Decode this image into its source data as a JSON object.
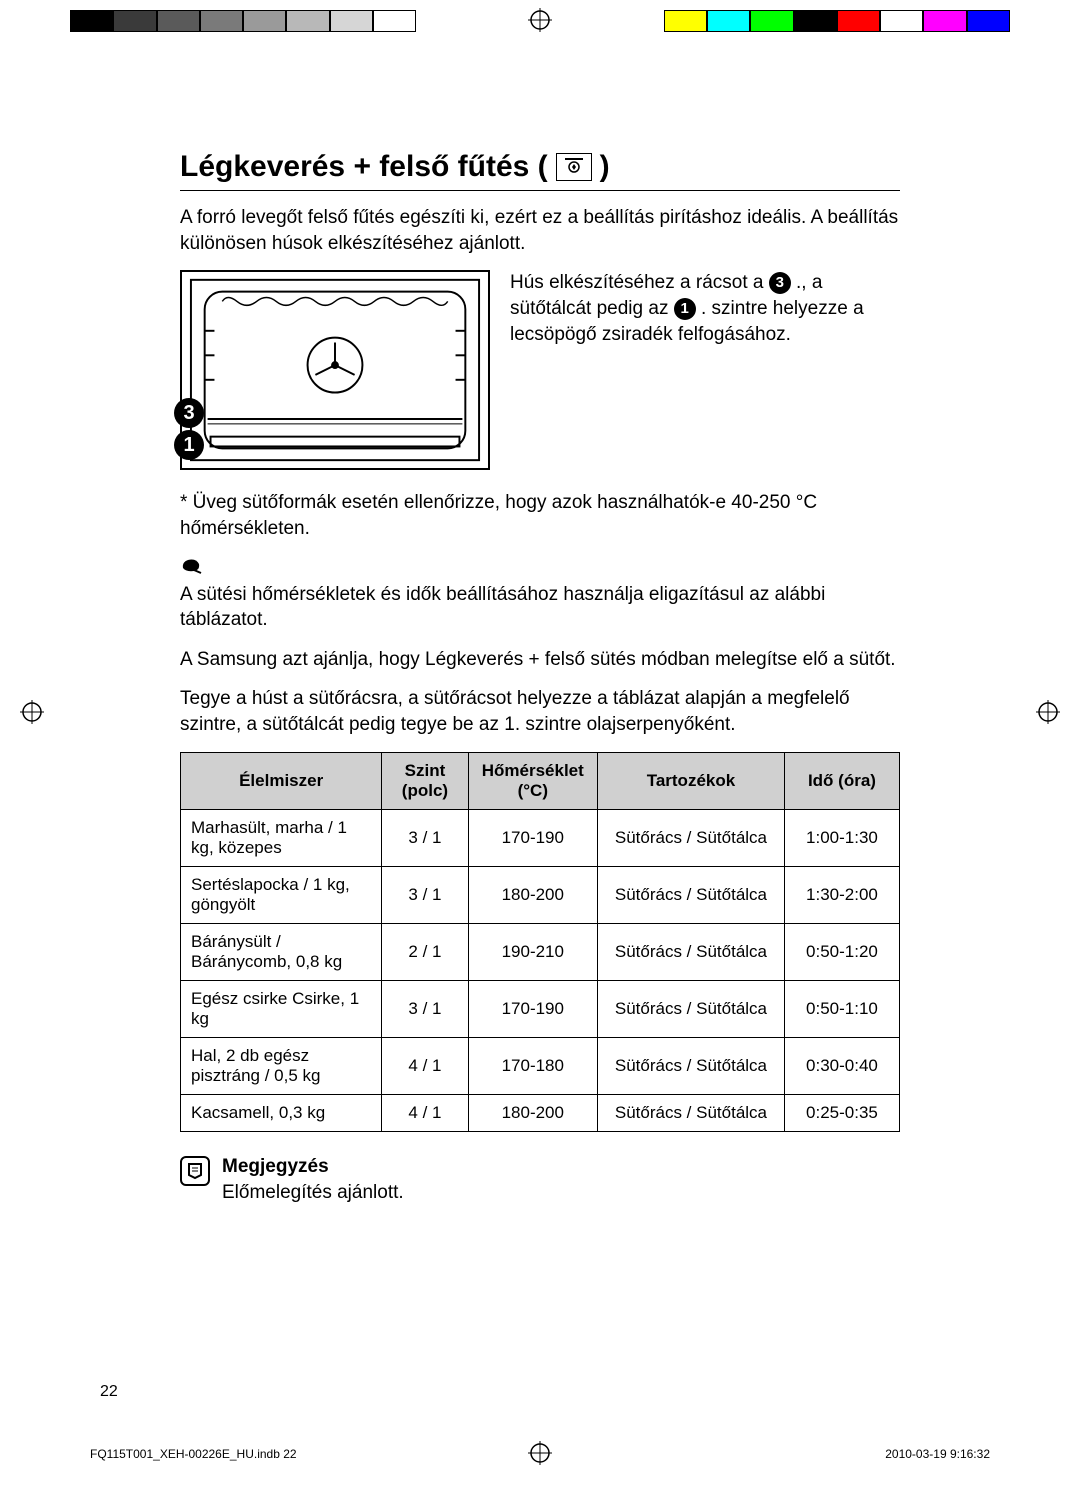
{
  "colorbar_left": [
    "#000000",
    "#3a3a3a",
    "#5a5a5a",
    "#7a7a7a",
    "#9a9a9a",
    "#b8b8b8",
    "#d6d6d6",
    "#ffffff"
  ],
  "colorbar_right": [
    "#ffff00",
    "#00ffff",
    "#00ff00",
    "#000000",
    "#ff0000",
    "#ffffff",
    "#ff00ff",
    "#0000ff"
  ],
  "heading_prefix": "Légkeverés + felső fűtés (",
  "heading_suffix": ")",
  "intro": "A forró levegőt felső fűtés egészíti ki, ezért ez a beállítás pirításhoz ideális. A beállítás különösen húsok elkészítéséhez ajánlott.",
  "fig_bubble_top": "3",
  "fig_bubble_bottom": "1",
  "fig_text_1": "Hús elkészítéséhez a rácsot a ",
  "fig_text_1_bubble": "3",
  "fig_text_1_after": "., a sütőtálcát pedig az ",
  "fig_text_2_bubble": "1",
  "fig_text_2_after": ". szintre helyezze a lecsöpögő zsiradék felfogásához.",
  "glass_note": "* Üveg sütőformák esetén ellenőrizze, hogy azok használhatók-e 40-250 °C hőmérsékleten.",
  "body_p1": "A sütési hőmérsékletek és idők beállításához használja eligazításul az alábbi táblázatot.",
  "body_p2": "A Samsung azt ajánlja, hogy Légkeverés + felső sütés módban melegítse elő a sütőt.",
  "body_p3": "Tegye a húst a sütőrácsra, a sütőrácsot helyezze a táblázat alapján a megfelelő szintre, a sütőtálcát pedig tegye be az 1. szintre olajserpenyőként.",
  "table": {
    "headers": [
      "Élelmiszer",
      "Szint (polc)",
      "Hőmérséklet (°C)",
      "Tartozékok",
      "Idő (óra)"
    ],
    "col_widths": [
      "28%",
      "12%",
      "18%",
      "26%",
      "16%"
    ],
    "rows": [
      [
        "Marhasült, marha / 1 kg, közepes",
        "3 / 1",
        "170-190",
        "Sütőrács / Sütőtálca",
        "1:00-1:30"
      ],
      [
        "Sertéslapocka / 1 kg, göngyölt",
        "3 / 1",
        "180-200",
        "Sütőrács / Sütőtálca",
        "1:30-2:00"
      ],
      [
        "Báránysült / Báránycomb, 0,8 kg",
        "2 / 1",
        "190-210",
        "Sütőrács / Sütőtálca",
        "0:50-1:20"
      ],
      [
        "Egész csirke Csirke, 1 kg",
        "3 / 1",
        "170-190",
        "Sütőrács / Sütőtálca",
        "0:50-1:10"
      ],
      [
        "Hal, 2 db egész pisztráng / 0,5 kg",
        "4 / 1",
        "170-180",
        "Sütőrács / Sütőtálca",
        "0:30-0:40"
      ],
      [
        "Kacsamell, 0,3 kg",
        "4 / 1",
        "180-200",
        "Sütőrács / Sütőtálca",
        "0:25-0:35"
      ]
    ]
  },
  "note_title": "Megjegyzés",
  "note_body": "Előmelegítés ajánlott.",
  "page_number": "22",
  "footer_left": "FQ115T001_XEH-00226E_HU.indb   22",
  "footer_right": "2010-03-19    9:16:32"
}
